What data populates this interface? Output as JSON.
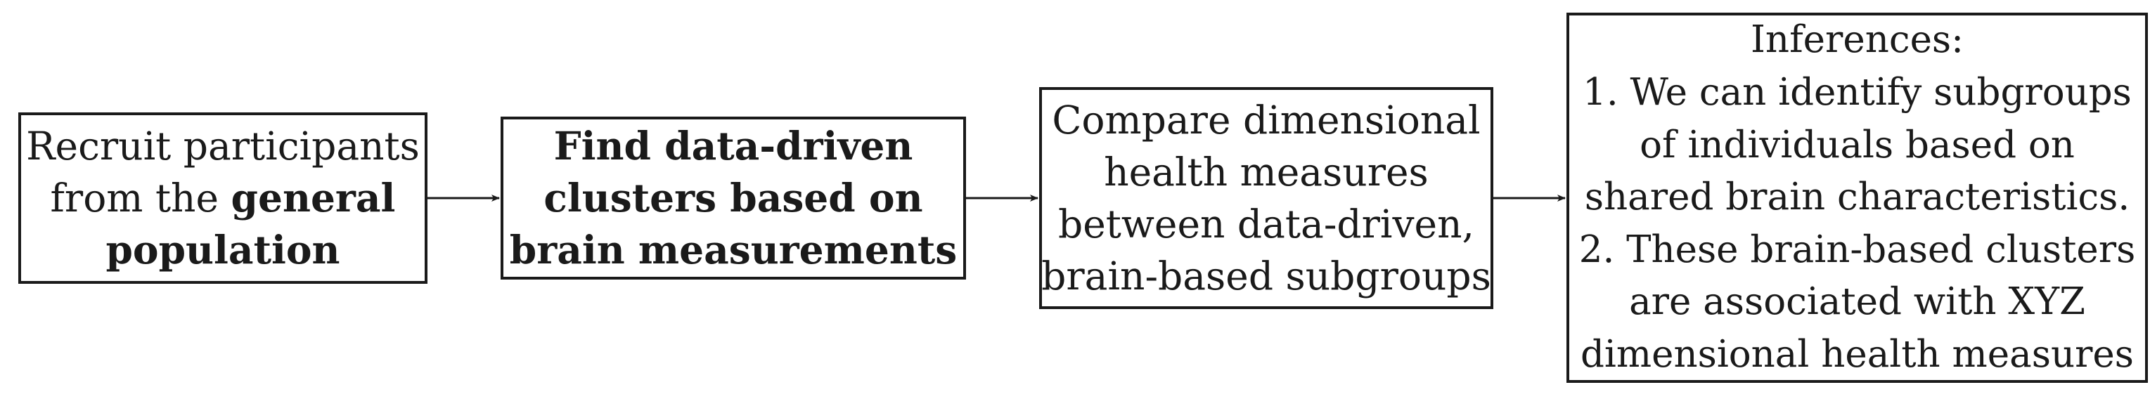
{
  "diagram": {
    "nodes": [
      {
        "id": "recruit",
        "lines": [
          [
            {
              "text": "Recruit participants",
              "bold": false
            }
          ],
          [
            {
              "text": "from the ",
              "bold": false
            },
            {
              "text": "general",
              "bold": true
            }
          ],
          [
            {
              "text": "population",
              "bold": true
            }
          ]
        ]
      },
      {
        "id": "clusters",
        "lines": [
          [
            {
              "text": "Find data-driven",
              "bold": true
            }
          ],
          [
            {
              "text": "clusters based on",
              "bold": true
            }
          ],
          [
            {
              "text": "brain measurements",
              "bold": true
            }
          ]
        ]
      },
      {
        "id": "compare",
        "lines": [
          [
            {
              "text": "Compare dimensional",
              "bold": false
            }
          ],
          [
            {
              "text": "health measures",
              "bold": false
            }
          ],
          [
            {
              "text": "between data-driven,",
              "bold": false
            }
          ],
          [
            {
              "text": "brain-based subgroups",
              "bold": false
            }
          ]
        ]
      },
      {
        "id": "inferences",
        "lines": [
          [
            {
              "text": "Inferences:",
              "bold": false
            }
          ],
          [
            {
              "text": "1. We can identify subgroups",
              "bold": false
            }
          ],
          [
            {
              "text": "of individuals based on",
              "bold": false
            }
          ],
          [
            {
              "text": "shared brain characteristics.",
              "bold": false
            }
          ],
          [
            {
              "text": "2. These brain-based clusters",
              "bold": false
            }
          ],
          [
            {
              "text": "are associated with XYZ",
              "bold": false
            }
          ],
          [
            {
              "text": "dimensional health measures",
              "bold": false
            }
          ]
        ]
      }
    ],
    "edges": [
      {
        "from": "recruit",
        "to": "clusters"
      },
      {
        "from": "clusters",
        "to": "compare"
      },
      {
        "from": "compare",
        "to": "inferences"
      }
    ],
    "colors": {
      "stroke": "#1a1a1a",
      "background": "#ffffff"
    }
  }
}
